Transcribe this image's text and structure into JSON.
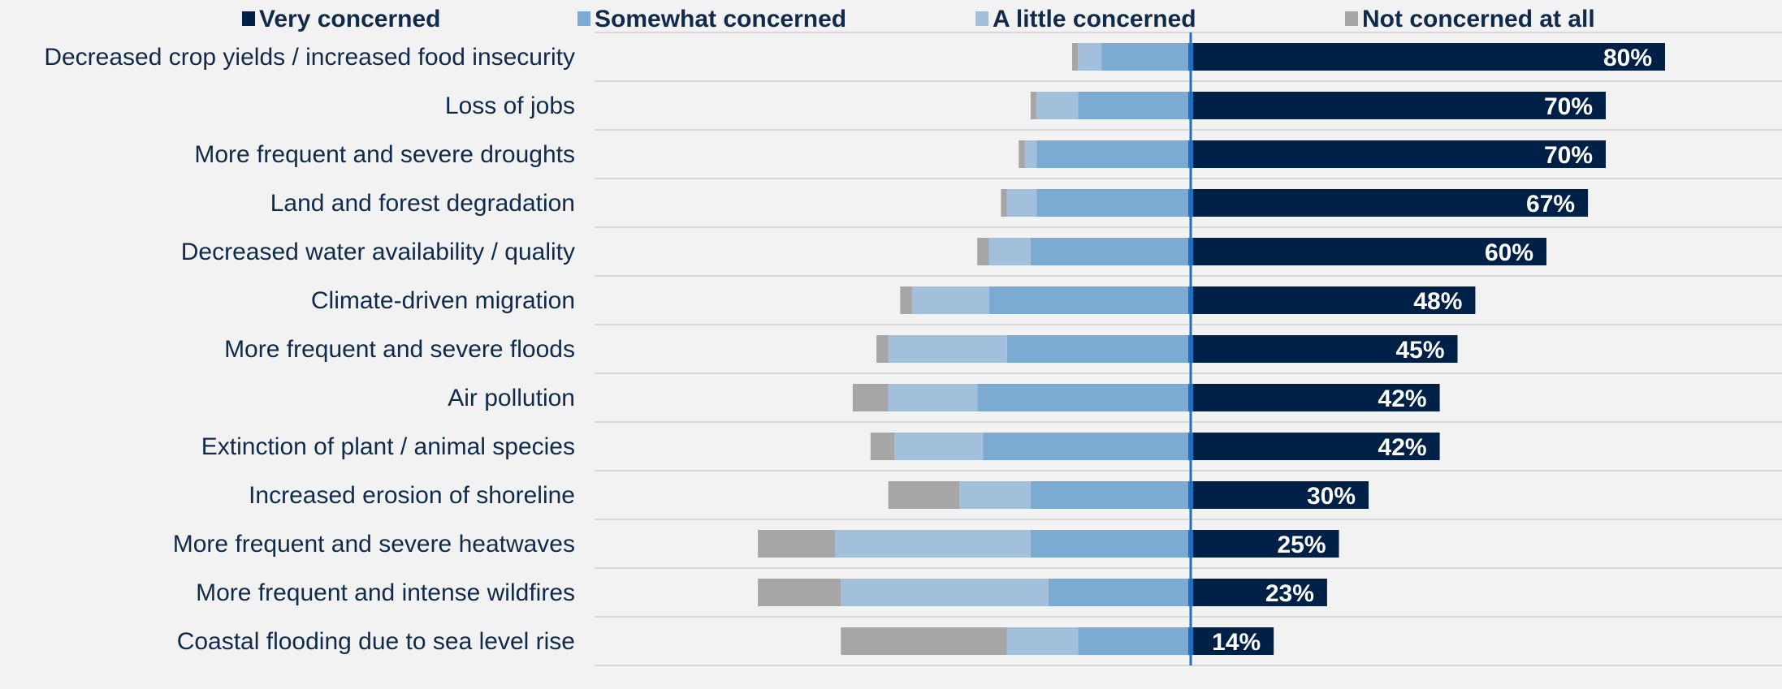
{
  "chart_data": {
    "type": "bar",
    "orientation": "horizontal-diverging",
    "title": "",
    "xlabel": "",
    "ylabel": "",
    "legend_position": "top",
    "grid": true,
    "categories": [
      "Decreased crop yields / increased food insecurity",
      "Loss of jobs",
      "More frequent and severe droughts",
      "Land and forest degradation",
      "Decreased water availability / quality",
      "Climate-driven migration",
      "More frequent and severe floods",
      "Air pollution",
      "Extinction of plant / animal species",
      "Increased erosion of shoreline",
      "More frequent and severe heatwaves",
      "More frequent and intense wildfires",
      "Coastal flooding due to sea level rise"
    ],
    "series": [
      {
        "name": "Very concerned",
        "color": "#002147",
        "direction": "right",
        "values": [
          80,
          70,
          70,
          67,
          60,
          48,
          45,
          42,
          42,
          30,
          25,
          23,
          14
        ],
        "labels": [
          "80%",
          "70%",
          "70%",
          "67%",
          "60%",
          "48%",
          "45%",
          "42%",
          "42%",
          "30%",
          "25%",
          "23%",
          "14%"
        ]
      },
      {
        "name": "Somewhat concerned",
        "color": "#7baad3",
        "direction": "left",
        "values": [
          15,
          19,
          26,
          26,
          27,
          34,
          31,
          36,
          35,
          27,
          27,
          24,
          19
        ]
      },
      {
        "name": "A little concerned",
        "color": "#a2bfdc",
        "direction": "left",
        "values": [
          4,
          7,
          2,
          5,
          7,
          13,
          20,
          15,
          15,
          12,
          33,
          35,
          12
        ]
      },
      {
        "name": "Not concerned at all",
        "color": "#a6a6a6",
        "direction": "left",
        "values": [
          1,
          1,
          1,
          1,
          2,
          2,
          2,
          6,
          4,
          12,
          13,
          14,
          28
        ]
      }
    ],
    "axis_color": "#1f6fc1",
    "gridline_color": "#d0d0d0"
  }
}
